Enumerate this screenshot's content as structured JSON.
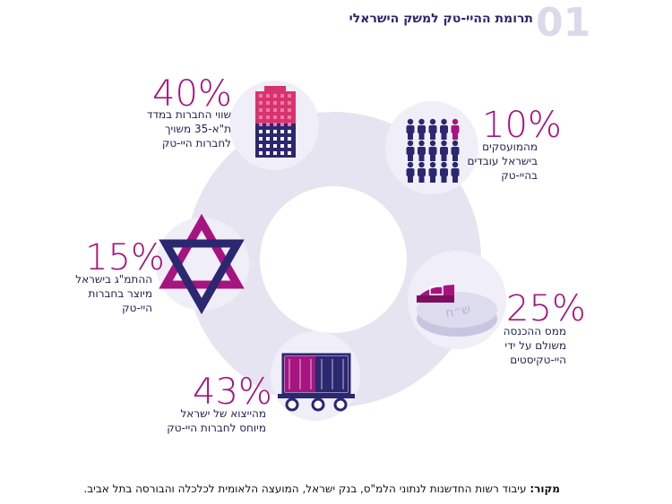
{
  "title": "תרומת ההיי-טק למשק הישראלי",
  "section_number": "01",
  "items": [
    {
      "value": "40%",
      "lines": [
        "שווי החברות במדד",
        "ת\"א-35 משויך",
        "לחברות היי-טק"
      ]
    },
    {
      "value": "10%",
      "lines": [
        "מהמועסקים",
        "בישראל עובדים",
        "בהיי-טק"
      ]
    },
    {
      "value": "15%",
      "lines": [
        "ההתמ\"ג בישראל",
        "מיוצר בחברות",
        "היי-טק"
      ]
    },
    {
      "value": "25%",
      "lines": [
        "ממס ההכנסה",
        "משולם על ידי",
        "היי-טקיסטים"
      ]
    },
    {
      "value": "43%",
      "lines": [
        "מהייצוא של ישראל",
        "מיוחס לחברות היי-טק"
      ]
    }
  ],
  "source": {
    "label": "מקור:",
    "text": "עיבוד רשות החדשנות לנתוני הלמ\"ס, בנק ישראל, המועצה הלאומית לכלכלה והבורסה בתל אביב."
  }
}
